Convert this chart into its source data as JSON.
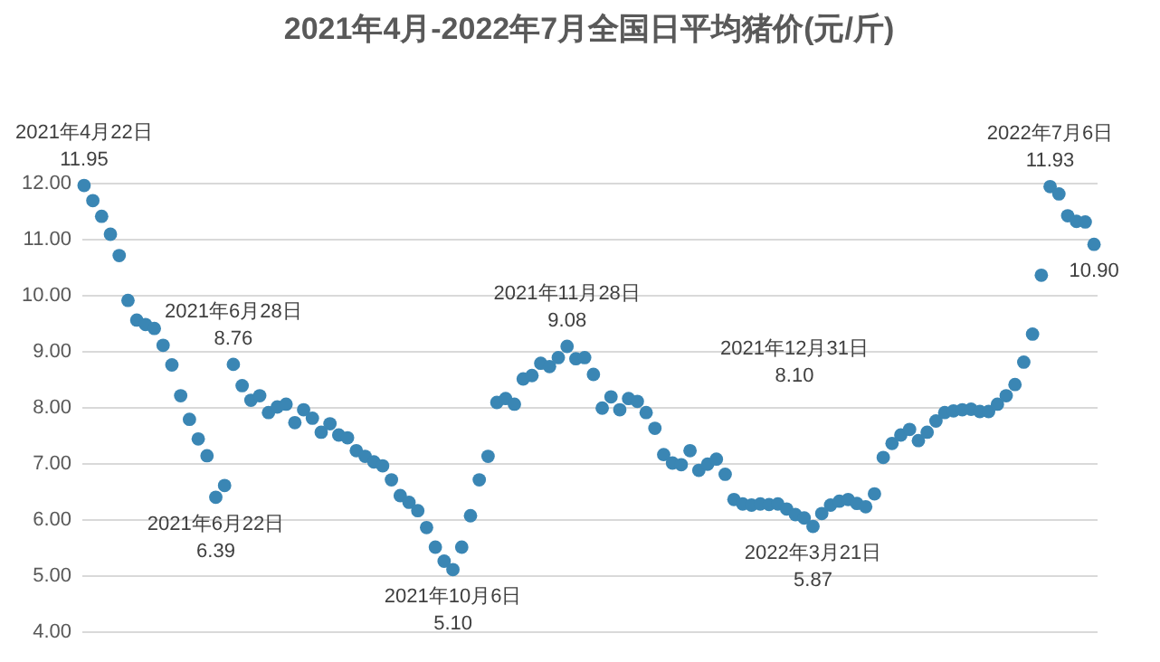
{
  "chart_data": {
    "type": "scatter",
    "title": "2021年4月-2022年7月全国日平均猪价(元/斤)",
    "categories": [
      null,
      null,
      null,
      null,
      null,
      null,
      null,
      null,
      null,
      null,
      null,
      null,
      null,
      null,
      null,
      null,
      null,
      null,
      null,
      null,
      null,
      null,
      null,
      null,
      null,
      null,
      null,
      null,
      null,
      null,
      null,
      null,
      null,
      null,
      null,
      null,
      null,
      null,
      null,
      null,
      null,
      null,
      null,
      null,
      null,
      null,
      null,
      null,
      null,
      null,
      null,
      null,
      null,
      null,
      null,
      null,
      null,
      null,
      null,
      null,
      null,
      null,
      null,
      null,
      null,
      null,
      null,
      null,
      null,
      null,
      null,
      null,
      null,
      null,
      null,
      null,
      null,
      null,
      null,
      null,
      null,
      null,
      null,
      null,
      null,
      null,
      null,
      null,
      null,
      null,
      null,
      null,
      null,
      null,
      null,
      null,
      null,
      null,
      null,
      null,
      null,
      null,
      null,
      null,
      null,
      null,
      null,
      null,
      null,
      null,
      null,
      null,
      null,
      null,
      null,
      null
    ],
    "series": [
      {
        "color": "#3a86b4",
        "values": [
          11.95,
          11.68,
          11.4,
          11.08,
          10.7,
          9.9,
          9.55,
          9.47,
          9.4,
          9.1,
          8.75,
          8.2,
          7.78,
          7.43,
          7.13,
          6.39,
          6.6,
          8.76,
          8.38,
          8.12,
          8.2,
          7.9,
          8.0,
          8.05,
          7.72,
          7.95,
          7.8,
          7.55,
          7.7,
          7.5,
          7.45,
          7.22,
          7.12,
          7.02,
          6.95,
          6.7,
          6.42,
          6.3,
          6.15,
          5.85,
          5.5,
          5.25,
          5.1,
          5.5,
          6.06,
          6.7,
          7.12,
          8.08,
          8.15,
          8.05,
          8.5,
          8.56,
          8.78,
          8.72,
          8.88,
          9.08,
          8.86,
          8.88,
          8.58,
          7.98,
          8.18,
          7.95,
          8.15,
          8.1,
          7.9,
          7.62,
          7.15,
          7.0,
          6.97,
          7.22,
          6.87,
          6.98,
          7.07,
          6.8,
          6.35,
          6.27,
          6.25,
          6.27,
          6.26,
          6.27,
          6.18,
          6.08,
          6.02,
          5.87,
          6.1,
          6.25,
          6.32,
          6.35,
          6.28,
          6.22,
          6.45,
          7.1,
          7.35,
          7.5,
          7.6,
          7.4,
          7.55,
          7.75,
          7.9,
          7.93,
          7.95,
          7.96,
          7.92,
          7.92,
          8.05,
          8.2,
          8.4,
          8.8,
          9.3,
          10.35,
          11.93,
          11.8,
          11.41,
          11.31,
          11.3,
          10.9
        ]
      }
    ],
    "ylim": [
      4,
      12
    ],
    "yticks": [
      {
        "value": 4,
        "label": "4.00"
      },
      {
        "value": 5,
        "label": "5.00"
      },
      {
        "value": 6,
        "label": "6.00"
      },
      {
        "value": 7,
        "label": "7.00"
      },
      {
        "value": 8,
        "label": "8.00"
      },
      {
        "value": 9,
        "label": "9.00"
      },
      {
        "value": 10,
        "label": "10.00"
      },
      {
        "value": 11,
        "label": "11.00"
      },
      {
        "value": 12,
        "label": "12.00"
      }
    ],
    "grid": "y",
    "tick_labels": "y",
    "marker": "circle",
    "annotations": [
      {
        "text": "2021年4月22日\n11.95",
        "y": 11.95
      },
      {
        "text": "2021年6月22日\n6.39",
        "y": 6.39
      },
      {
        "text": "2021年6月28日\n8.76",
        "y": 8.76
      },
      {
        "text": "2021年10月6日\n5.10",
        "y": 5.1
      },
      {
        "text": "2021年11月28日\n9.08",
        "y": 9.08
      },
      "2021年12月31日\n8.10",
      {
        "text": "2022年3月21日\n5.87",
        "y": 5.87
      },
      {
        "text": "2022年7月6日\n11.93",
        "y": 11.93
      },
      {
        "text": "10.90",
        "y": 10.9
      }
    ]
  }
}
